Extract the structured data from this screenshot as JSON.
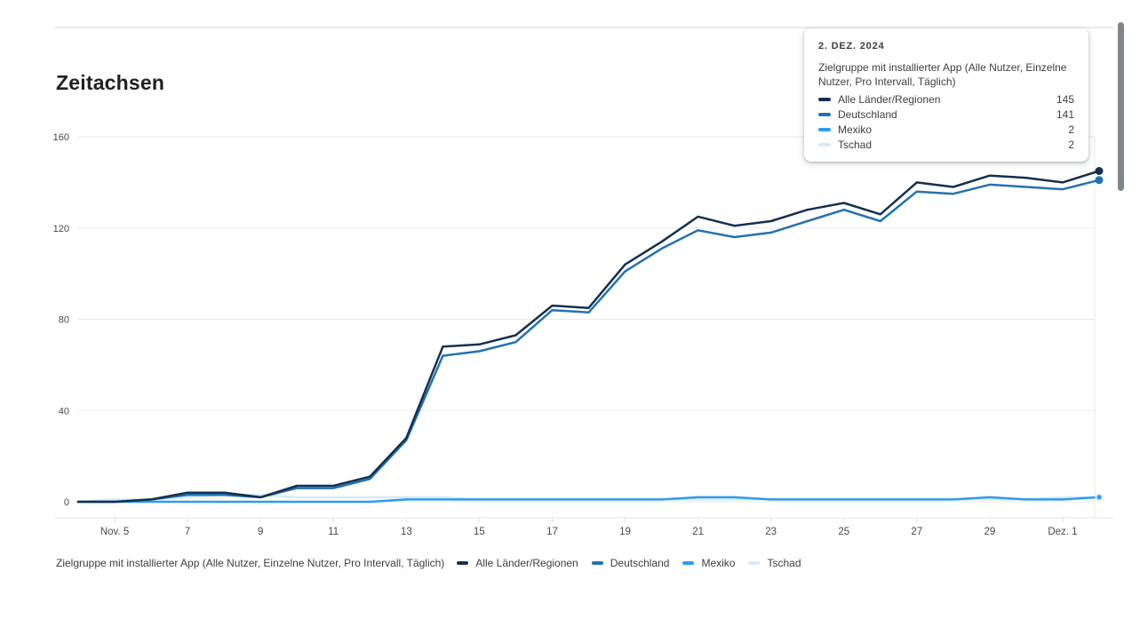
{
  "header": {
    "title": "Zeitachsen"
  },
  "tooltip": {
    "date": "2. DEZ. 2024",
    "metric_label": "Zielgruppe mit installierter App (Alle Nutzer, Einzelne Nutzer, Pro Intervall, Täglich)",
    "rows": [
      {
        "name": "Alle Länder/Regionen",
        "value": "145"
      },
      {
        "name": "Deutschland",
        "value": "141"
      },
      {
        "name": "Mexiko",
        "value": "2"
      },
      {
        "name": "Tschad",
        "value": "2"
      }
    ]
  },
  "legend": {
    "metric_label": "Zielgruppe mit installierter App (Alle Nutzer, Einzelne Nutzer, Pro Intervall, Täglich)",
    "items": [
      "Alle Länder/Regionen",
      "Deutschland",
      "Mexiko",
      "Tschad"
    ]
  },
  "chart_data": {
    "type": "line",
    "title": "Zeitachsen",
    "xlabel": "",
    "ylabel": "",
    "ylim": [
      0,
      160
    ],
    "yticks": [
      0,
      40,
      80,
      120,
      160
    ],
    "grid": "horizontal",
    "legend_position": "bottom",
    "hovered_point": "Dez. 2",
    "x": [
      "Nov. 4",
      "Nov. 5",
      "Nov. 6",
      "Nov. 7",
      "Nov. 8",
      "Nov. 9",
      "Nov. 10",
      "Nov. 11",
      "Nov. 12",
      "Nov. 13",
      "Nov. 14",
      "Nov. 15",
      "Nov. 16",
      "Nov. 17",
      "Nov. 18",
      "Nov. 19",
      "Nov. 20",
      "Nov. 21",
      "Nov. 22",
      "Nov. 23",
      "Nov. 24",
      "Nov. 25",
      "Nov. 26",
      "Nov. 27",
      "Nov. 28",
      "Nov. 29",
      "Nov. 30",
      "Dez. 1",
      "Dez. 2"
    ],
    "xtick": [
      {
        "index": 1,
        "label": "Nov. 5"
      },
      {
        "index": 3,
        "label": "7"
      },
      {
        "index": 5,
        "label": "9"
      },
      {
        "index": 7,
        "label": "11"
      },
      {
        "index": 9,
        "label": "13"
      },
      {
        "index": 11,
        "label": "15"
      },
      {
        "index": 13,
        "label": "17"
      },
      {
        "index": 15,
        "label": "19"
      },
      {
        "index": 17,
        "label": "21"
      },
      {
        "index": 19,
        "label": "23"
      },
      {
        "index": 21,
        "label": "25"
      },
      {
        "index": 23,
        "label": "27"
      },
      {
        "index": 25,
        "label": "29"
      },
      {
        "index": 27,
        "label": "Dez. 1"
      }
    ],
    "series": [
      {
        "name": "Alle Länder/Regionen",
        "color": "#14304f",
        "dot_r": 4.5,
        "values": [
          0,
          0,
          1,
          4,
          4,
          2,
          7,
          7,
          11,
          28,
          68,
          69,
          73,
          86,
          85,
          104,
          114,
          125,
          121,
          123,
          128,
          131,
          126,
          140,
          138,
          143,
          142,
          140,
          145
        ]
      },
      {
        "name": "Deutschland",
        "color": "#2272b1",
        "dot_r": 4.5,
        "values": [
          0,
          0,
          1,
          3,
          3,
          2,
          6,
          6,
          10,
          27,
          64,
          66,
          70,
          84,
          83,
          101,
          111,
          119,
          116,
          118,
          123,
          128,
          123,
          136,
          135,
          139,
          138,
          137,
          141
        ]
      },
      {
        "name": "Mexiko",
        "color": "#2e9bf0",
        "dot_r": 2.5,
        "values": [
          0,
          0,
          0,
          0,
          0,
          0,
          0,
          0,
          0,
          1,
          1,
          1,
          1,
          1,
          1,
          1,
          1,
          2,
          2,
          1,
          1,
          1,
          1,
          1,
          1,
          2,
          1,
          1,
          2
        ]
      },
      {
        "name": "Tschad",
        "color": "#d8eaf8",
        "dot_r": 4.5,
        "values": [
          0,
          1,
          1,
          2,
          3,
          3,
          2,
          2,
          2,
          2,
          2,
          1,
          1,
          1,
          1,
          1,
          1,
          1,
          1,
          1,
          1,
          1,
          1,
          1,
          1,
          1,
          1,
          2,
          2
        ]
      }
    ],
    "axis_colors": {
      "gridline": "#e8eaed",
      "axis_line": "#e6e6e6",
      "tick": "#dadce0",
      "tick_label": "#46494d"
    }
  }
}
